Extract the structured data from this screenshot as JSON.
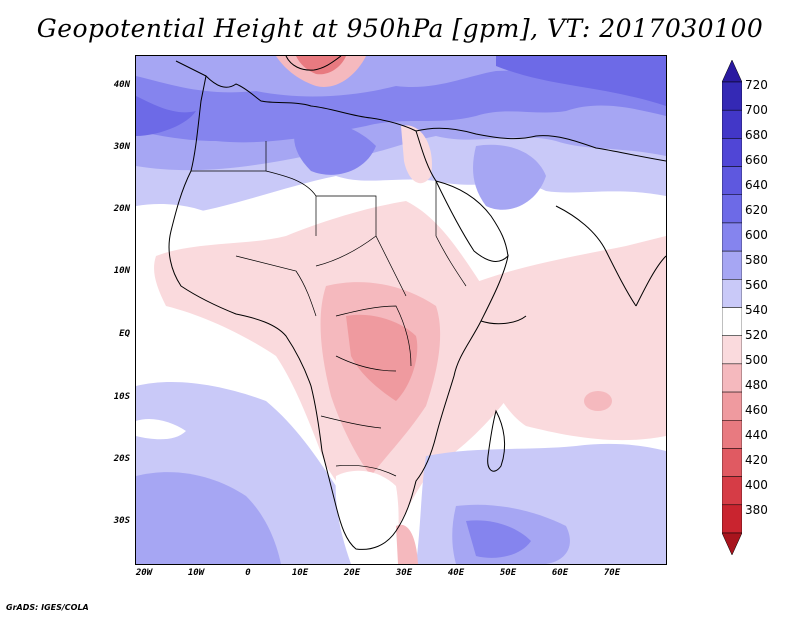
{
  "title": "Geopotential Height at 950hPa [gpm], VT: 2017030100",
  "credit": "GrADS: IGES/COLA",
  "axes": {
    "lat_labels": [
      "40N",
      "30N",
      "20N",
      "10N",
      "EQ",
      "10S",
      "20S",
      "30S"
    ],
    "lon_labels": [
      "20W",
      "10W",
      "0",
      "10E",
      "20E",
      "30E",
      "40E",
      "50E",
      "60E",
      "70E"
    ]
  },
  "colorbar": {
    "labels": [
      "720",
      "700",
      "680",
      "660",
      "640",
      "620",
      "600",
      "580",
      "560",
      "540",
      "520",
      "500",
      "480",
      "460",
      "440",
      "420",
      "400",
      "380"
    ],
    "colors": [
      "#2a1aa0",
      "#3429b5",
      "#4237c8",
      "#5046d6",
      "#5e58df",
      "#6d6ae7",
      "#8584ee",
      "#a6a6f3",
      "#c9c9f8",
      "#ffffff",
      "#fadadd",
      "#f5b9be",
      "#ef9a9f",
      "#e87a80",
      "#e05a62",
      "#d63c46",
      "#c9242f",
      "#a8141d"
    ]
  }
}
